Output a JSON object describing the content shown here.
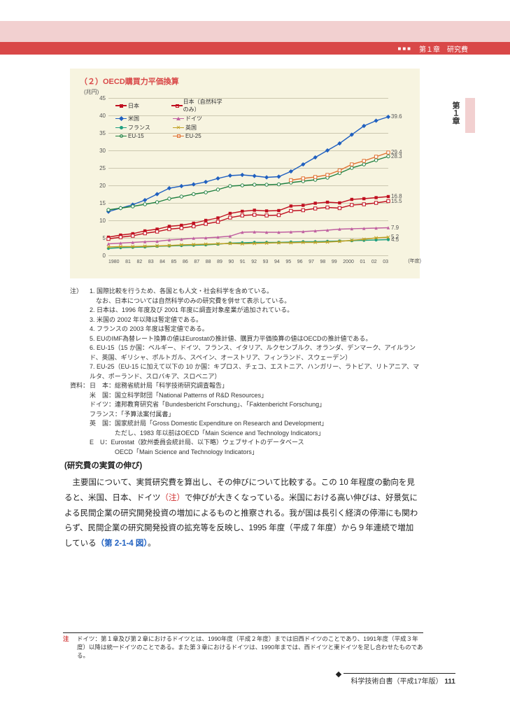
{
  "header": {
    "chapter": "第１章　研究費"
  },
  "side": {
    "label": "第１章"
  },
  "chart": {
    "title": "（２）OECD購買力平価換算",
    "y_unit": "(兆円)",
    "x_unit": "(年度)",
    "ylim": [
      0,
      45
    ],
    "ytick_step": 5,
    "yticks": [
      0,
      5,
      10,
      15,
      20,
      25,
      30,
      35,
      40,
      45
    ],
    "xticks": [
      "1980",
      "81",
      "82",
      "83",
      "84",
      "85",
      "86",
      "87",
      "88",
      "89",
      "90",
      "91",
      "92",
      "93",
      "94",
      "95",
      "96",
      "97",
      "98",
      "99",
      "2000",
      "01",
      "02",
      "03"
    ],
    "colors": {
      "japan": "#c01020",
      "japan_ns": "#c01020",
      "usa": "#2060c0",
      "germany": "#c060a0",
      "france": "#20a080",
      "uk": "#c0a020",
      "eu15": "#208040",
      "eu25": "#e07030",
      "grid": "#ccc8b0",
      "bg": "#f7f4e0",
      "text": "#555555"
    },
    "legend": [
      {
        "key": "japan",
        "label": "日本",
        "marker": "square-filled"
      },
      {
        "key": "japan_ns",
        "label": "日本（自然科学のみ）",
        "marker": "square-open"
      },
      {
        "key": "usa",
        "label": "米国",
        "marker": "diamond-filled"
      },
      {
        "key": "germany",
        "label": "ドイツ",
        "marker": "triangle-filled"
      },
      {
        "key": "france",
        "label": "フランス",
        "marker": "circle-filled"
      },
      {
        "key": "uk",
        "label": "英国",
        "marker": "x"
      },
      {
        "key": "eu15",
        "label": "EU-15",
        "marker": "circle-open"
      },
      {
        "key": "eu25",
        "label": "EU-25",
        "marker": "square-open"
      }
    ],
    "end_labels": [
      {
        "key": "usa",
        "value": "39.6",
        "y": 39.6
      },
      {
        "key": "eu25",
        "value": "29.4",
        "y": 29.4
      },
      {
        "key": "eu15",
        "value": "28.3",
        "y": 28.3
      },
      {
        "key": "japan",
        "value": "16.8",
        "y": 16.8
      },
      {
        "key": "japan_ns",
        "value": "15.5",
        "y": 15.5
      },
      {
        "key": "germany",
        "value": "7.9",
        "y": 7.9
      },
      {
        "key": "uk",
        "value": "5.2",
        "y": 5.2
      },
      {
        "key": "france",
        "value": "4.5",
        "y": 4.5
      }
    ],
    "series": {
      "japan": [
        5.2,
        5.8,
        6.2,
        7.0,
        7.5,
        8.3,
        8.6,
        9.2,
        10,
        10.7,
        12,
        12.6,
        12.9,
        12.7,
        12.8,
        14.1,
        14.3,
        14.9,
        15.2,
        15,
        16,
        16.2,
        16.5,
        16.8
      ],
      "japan_ns": [
        4.7,
        5.2,
        5.6,
        6.3,
        6.8,
        7.5,
        7.8,
        8.3,
        9,
        9.6,
        10.8,
        11.4,
        11.6,
        11.4,
        11.5,
        12.7,
        12.9,
        13.4,
        13.7,
        13.5,
        14.4,
        14.6,
        15,
        15.5
      ],
      "usa": [
        12.5,
        13.5,
        14.5,
        15.8,
        17.5,
        19.2,
        19.8,
        20.3,
        21,
        22,
        22.8,
        23,
        22.7,
        22.3,
        22.5,
        24,
        26,
        28,
        30,
        32,
        34.5,
        37,
        38.5,
        39.6
      ],
      "germany": [
        3.3,
        3.5,
        3.7,
        3.9,
        4.0,
        4.4,
        4.6,
        4.9,
        5.0,
        5.2,
        5.5,
        6.6,
        6.7,
        6.6,
        6.6,
        6.7,
        6.8,
        7.0,
        7.2,
        7.5,
        7.6,
        7.7,
        7.8,
        7.9
      ],
      "france": [
        2.0,
        2.2,
        2.3,
        2.4,
        2.6,
        2.7,
        2.8,
        2.9,
        3.0,
        3.2,
        3.5,
        3.6,
        3.7,
        3.7,
        3.7,
        3.8,
        3.9,
        3.9,
        4.0,
        4.1,
        4.2,
        4.3,
        4.4,
        4.5
      ],
      "uk": [
        2.4,
        2.5,
        2.5,
        2.6,
        2.7,
        2.8,
        3.0,
        3.1,
        3.2,
        3.3,
        3.4,
        3.3,
        3.4,
        3.5,
        3.6,
        3.6,
        3.7,
        3.7,
        3.8,
        4.0,
        4.3,
        4.6,
        5.0,
        5.2
      ],
      "eu15": [
        13,
        13.5,
        14,
        14.6,
        15.2,
        16.2,
        16.8,
        17.5,
        18,
        18.8,
        19.8,
        20,
        20.2,
        20.2,
        20.3,
        20.8,
        21.2,
        21.6,
        22.2,
        23.5,
        25,
        26,
        27.2,
        28.3
      ],
      "eu25": [
        null,
        null,
        null,
        null,
        null,
        null,
        null,
        null,
        null,
        null,
        null,
        null,
        null,
        null,
        null,
        21.5,
        22,
        22.4,
        23,
        24.3,
        26,
        27,
        28.2,
        29.4
      ]
    }
  },
  "notes": {
    "header": "注）",
    "items": [
      "1. 国際比較を行うため、各国とも人文・社会科学を含めている。\n　なお、日本については自然科学のみの研究費を併せて表示している。",
      "2. 日本は、1996 年度及び 2001 年度に調査対象産業が追加されている。",
      "3. 米国の 2002 年以降は暫定値である。",
      "4. フランスの 2003 年度は暫定値である。",
      "5. EUのIMF為替レート換算の値はEurostatの推計値、購買力平価換算の値はOECDの推計値である。",
      "6. EU-15（15 か国：ベルギー、ドイツ、フランス、イタリア、ルクセンブルク、オランダ、デンマーク、アイルランド、英国、ギリシャ、ポルトガル、スペイン、オーストリア、フィンランド、スウェーデン）",
      "7. EU-25（EU-15 に加えて以下の 10 か国：キプロス、チェコ、エストニア、ハンガリー、ラトビア、リトアニア、マルタ、ポーランド、スロバキア、スロベニア）"
    ],
    "sources_header": "資料：",
    "sources": [
      "日　本：総務省統計局「科学技術研究調査報告」",
      "米　国：国立科学財団「National Patterns of R&D Resources」",
      "ドイツ：連邦教育研究省「Bundesbericht Forschung」、「Faktenbericht Forschung」",
      "フランス：「予算法案付属書」",
      "英　国：国家統計局「Gross Domestic Expenditure on Research and Development」\n　　　　ただし、1983 年以前はOECD「Main Science and Technology Indicators」",
      "E　U：Eurostat（欧州委員会統計局、以下略）ウェブサイトのデータベース\n　　　　OECD「Main Science and Technology Indicators」"
    ]
  },
  "body": {
    "heading": "(研究費の実質の伸び)",
    "text": "主要国について、実質研究費を算出し、その伸びについて比較する。この 10 年程度の動向を見ると、米国、日本、ドイツ",
    "note_marker": "（注）",
    "text2": "で伸びが大きくなっている。米国における高い伸びは、好景気による民間企業の研究開発投資の増加によるものと推察される。我が国は長引く経済の停滞にも関わらず、民間企業の研究開発投資の拡充等を反映し、1995 年度（平成７年度）から９年連続で増加している",
    "fig_ref": "（第 2-1-4 図）",
    "period": "。"
  },
  "footnote": {
    "marker": "注",
    "text": "ドイツ：第１章及び第２章におけるドイツとは、1990年度（平成２年度）までは旧西ドイツのことであり、1991年度（平成３年度）以降は統一ドイツのことである。また第３章におけるドイツは、1990年までは、西ドイツと東ドイツを足し合わせたものである。"
  },
  "footer": {
    "text": "科学技術白書（平成17年版）",
    "page": "111"
  }
}
